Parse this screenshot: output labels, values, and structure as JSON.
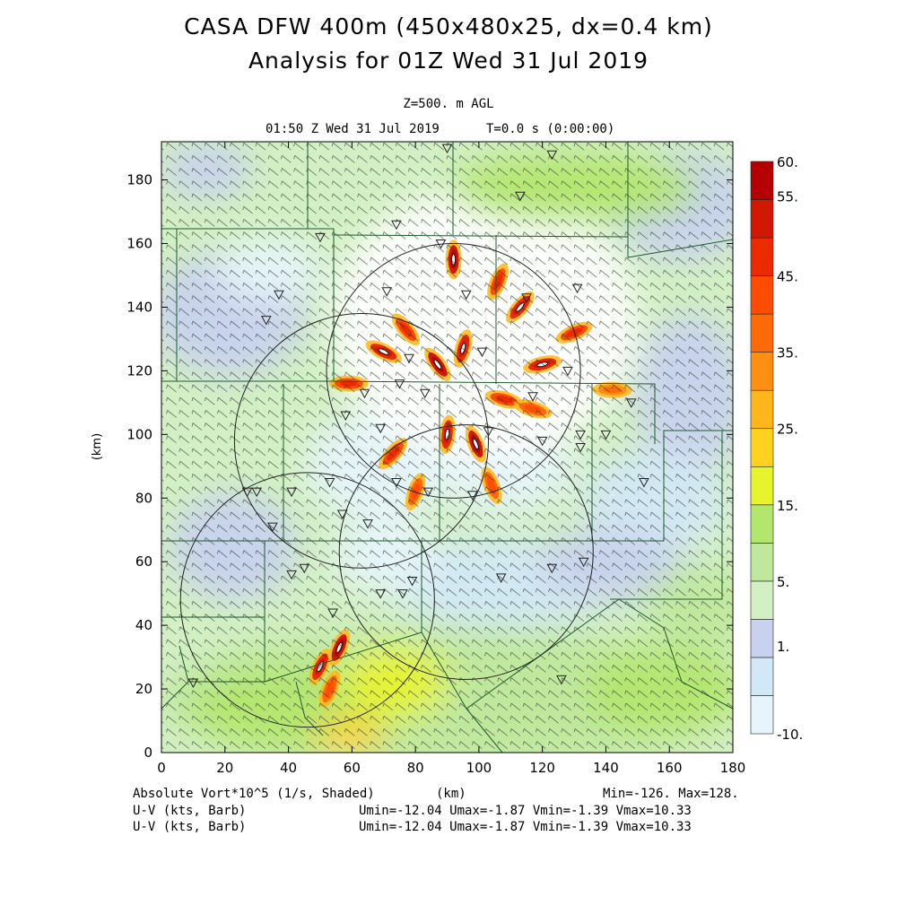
{
  "header": {
    "title_line1": "CASA DFW 400m (450x480x25, dx=0.4 km)",
    "title_line2": "Analysis for 01Z Wed 31 Jul 2019",
    "level": "Z=500. m AGL",
    "valid_time": "01:50 Z Wed 31 Jul 2019",
    "forecast_time": "T=0.0 s (0:00:00)"
  },
  "footer": {
    "field_label": "Absolute Vort*10^5 (1/s, Shaded)",
    "xunit": "(km)",
    "minmax": "Min=-126. Max=128.",
    "barb1_label": "U-V (kts, Barb)",
    "barb1_stats": "Umin=-12.04 Umax=-1.87 Vmin=-1.39 Vmax=10.33",
    "barb2_label": "U-V (kts, Barb)",
    "barb2_stats": "Umin=-12.04 Umax=-1.87 Vmin=-1.39 Vmax=10.33"
  },
  "colorbar": {
    "labels": [
      {
        "text": "60.",
        "value": 60
      },
      {
        "text": "55.",
        "value": 55
      },
      {
        "text": "45.",
        "value": 45
      },
      {
        "text": "35.",
        "value": 35
      },
      {
        "text": "25.",
        "value": 25
      },
      {
        "text": "15.",
        "value": 15
      },
      {
        "text": "5.",
        "value": 5
      },
      {
        "text": "1.",
        "value": 1
      },
      {
        "text": "-10.",
        "value": -10
      }
    ],
    "colors": [
      "#e6f5fb",
      "#d2e8f6",
      "#c8d2ef",
      "#d2f0c3",
      "#bfe89c",
      "#b3e66d",
      "#e6f42c",
      "#ffd21f",
      "#ffb61a",
      "#ff8f10",
      "#ff6a08",
      "#ff4c00",
      "#eb2a00",
      "#d21800",
      "#b40000"
    ]
  },
  "chart_data": {
    "type": "heatmap",
    "field": "Absolute Vort*10^5 (1/s, Shaded)",
    "xlabel": "(km)",
    "ylabel": "(km)",
    "xlim": [
      0,
      180
    ],
    "ylim": [
      0,
      192
    ],
    "xticks": [
      0,
      20,
      40,
      60,
      80,
      100,
      120,
      140,
      160,
      180
    ],
    "yticks": [
      0,
      20,
      40,
      60,
      80,
      100,
      120,
      140,
      160,
      180
    ],
    "min": -126,
    "max": 128,
    "radar_rings": [
      {
        "cx": 92,
        "cy": 120,
        "r": 40
      },
      {
        "cx": 63,
        "cy": 98,
        "r": 40
      },
      {
        "cx": 96,
        "cy": 63,
        "r": 40
      },
      {
        "cx": 46,
        "cy": 48,
        "r": 40
      }
    ],
    "vortex_patches": [
      {
        "x": 87,
        "y": 122,
        "value": 60
      },
      {
        "x": 95,
        "y": 127,
        "value": 55
      },
      {
        "x": 77,
        "y": 133,
        "value": 50
      },
      {
        "x": 113,
        "y": 140,
        "value": 55
      },
      {
        "x": 120,
        "y": 122,
        "value": 55
      },
      {
        "x": 108,
        "y": 111,
        "value": 50
      },
      {
        "x": 99,
        "y": 97,
        "value": 60
      },
      {
        "x": 73,
        "y": 94,
        "value": 50
      },
      {
        "x": 90,
        "y": 100,
        "value": 55
      },
      {
        "x": 70,
        "y": 126,
        "value": 55
      },
      {
        "x": 92,
        "y": 155,
        "value": 60
      },
      {
        "x": 106,
        "y": 148,
        "value": 50
      },
      {
        "x": 130,
        "y": 132,
        "value": 50
      },
      {
        "x": 117,
        "y": 108,
        "value": 45
      },
      {
        "x": 59,
        "y": 116,
        "value": 50
      },
      {
        "x": 56,
        "y": 33,
        "value": 60
      },
      {
        "x": 50,
        "y": 27,
        "value": 55
      },
      {
        "x": 53,
        "y": 20,
        "value": 45
      },
      {
        "x": 80,
        "y": 82,
        "value": 45
      },
      {
        "x": 104,
        "y": 84,
        "value": 45
      },
      {
        "x": 142,
        "y": 114,
        "value": 40
      }
    ]
  }
}
